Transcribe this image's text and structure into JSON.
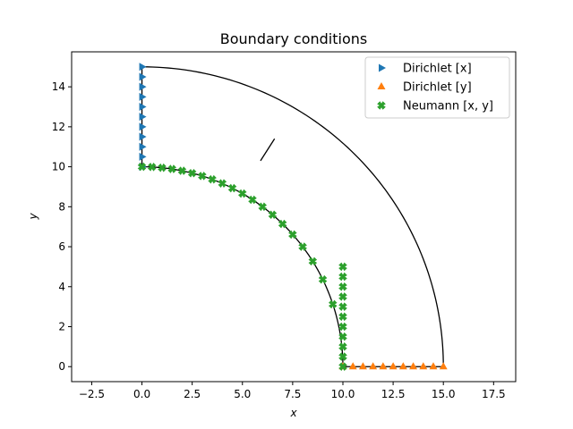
{
  "chart_data": {
    "type": "scatter",
    "title": "Boundary conditions",
    "xlabel": "x",
    "ylabel": "y",
    "xlim": [
      -3.5,
      18.6
    ],
    "ylim": [
      -0.75,
      15.75
    ],
    "xticks": [
      "−2.5",
      "0.0",
      "2.5",
      "5.0",
      "7.5",
      "10.0",
      "12.5",
      "15.0",
      "17.5"
    ],
    "xtick_values": [
      -2.5,
      0,
      2.5,
      5,
      7.5,
      10,
      12.5,
      15,
      17.5
    ],
    "yticks": [
      "0",
      "2",
      "4",
      "6",
      "8",
      "10",
      "12",
      "14"
    ],
    "ytick_values": [
      0,
      2,
      4,
      6,
      8,
      10,
      12,
      14
    ],
    "grid": false,
    "legend_position": "top-right",
    "geometry": {
      "inner_radius": 10,
      "outer_radius": 15,
      "left_edge": [
        [
          0,
          10
        ],
        [
          0,
          15
        ]
      ],
      "bottom_edge": [
        [
          10,
          0
        ],
        [
          15,
          0
        ]
      ],
      "short_segment": [
        [
          5.9,
          10.3
        ],
        [
          6.6,
          11.4
        ]
      ],
      "line_color": "#000000"
    },
    "series": [
      {
        "name": "Dirichlet  [x]",
        "marker": "triangle-right",
        "color": "#1f77b4",
        "x": [
          0,
          0,
          0,
          0,
          0,
          0,
          0,
          0,
          0,
          0,
          0
        ],
        "y": [
          10.0,
          10.5,
          11.0,
          11.5,
          12.0,
          12.5,
          13.0,
          13.5,
          14.0,
          14.5,
          15.0
        ]
      },
      {
        "name": "Dirichlet  [y]",
        "marker": "triangle-up",
        "color": "#ff7f0e",
        "x": [
          10.0,
          10.5,
          11.0,
          11.5,
          12.0,
          12.5,
          13.0,
          13.5,
          14.0,
          14.5,
          15.0
        ],
        "y": [
          0,
          0,
          0,
          0,
          0,
          0,
          0,
          0,
          0,
          0,
          0
        ]
      },
      {
        "name": "Neumann  [x, y]",
        "marker": "x-filled",
        "color": "#2ca02c",
        "x": [
          0.0,
          0.5,
          1.0,
          1.5,
          2.0,
          2.5,
          3.0,
          3.5,
          4.0,
          4.5,
          5.0,
          5.5,
          6.0,
          6.5,
          7.0,
          7.5,
          8.0,
          8.5,
          9.0,
          9.5,
          10.0,
          10.0,
          10.0,
          10.0,
          10.0,
          10.0,
          10.0,
          10.0,
          10.0,
          10.0,
          10.0
        ],
        "y": [
          10.0,
          9.99,
          9.95,
          9.89,
          9.8,
          9.68,
          9.54,
          9.37,
          9.17,
          8.93,
          8.66,
          8.35,
          8.0,
          7.6,
          7.14,
          6.61,
          6.0,
          5.27,
          4.36,
          3.12,
          0.0,
          0.5,
          1.0,
          1.5,
          2.0,
          2.5,
          3.0,
          3.5,
          4.0,
          4.5,
          5.0
        ]
      }
    ]
  }
}
